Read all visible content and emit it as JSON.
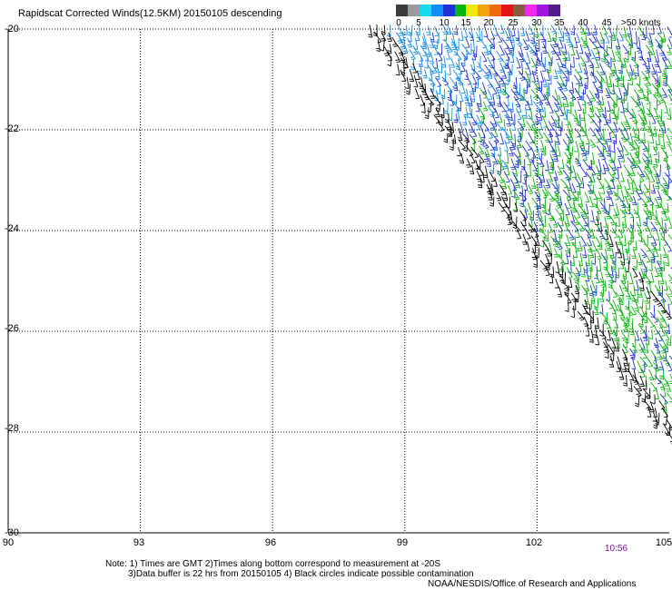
{
  "title": "Rapidscat Corrected Winds(12.5KM) 20150105 descending",
  "colorbar": {
    "colors": [
      "#3c3c3c",
      "#9a9a9a",
      "#19d6f0",
      "#108cf2",
      "#1f33d6",
      "#06b40a",
      "#f0e60c",
      "#f5a20f",
      "#f06a12",
      "#e61515",
      "#8a5a43",
      "#f028f0",
      "#a016e0",
      "#501c8c"
    ],
    "labels": [
      "0",
      "5",
      "10",
      "15",
      "20",
      "25",
      "30",
      "35",
      "40",
      "45",
      ">50 knots"
    ]
  },
  "lat_labels": [
    "-20",
    "-22",
    "-24",
    "-26",
    "-28",
    "-30"
  ],
  "lon_labels": [
    "90",
    "93",
    "96",
    "99",
    "102",
    "105"
  ],
  "time_label": "10:56",
  "notes": {
    "line1": "Note: 1) Times are GMT 2)Times along bottom correspond to measurement at -20S",
    "line2": "3)Data buffer is 22 hrs from 20150105 4) Black circles indicate possible contamination",
    "line3": "NOAA/NESDIS/Office of Research and Applications"
  },
  "map": {
    "lon_range": [
      90,
      105
    ],
    "lat_range": [
      -30,
      -20
    ],
    "grid": "dotted",
    "wind_colors": {
      "contaminated": "#000000",
      "speed_10_15": "#108cf2",
      "speed_15_20": "#1f33d6",
      "speed_20_25": "#06b40a"
    }
  }
}
